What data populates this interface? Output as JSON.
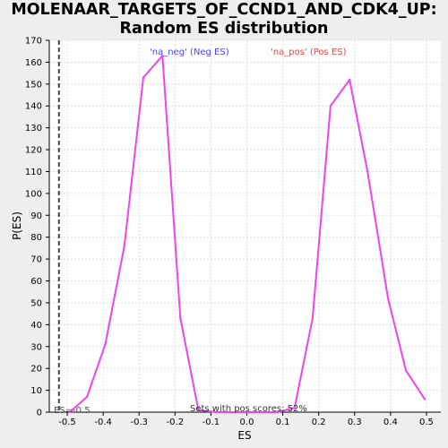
{
  "title_line1": "MOLENAAR_TARGETS_OF_CCND1_AND_CDK4_UP:",
  "title_line2": "Random ES distribution",
  "chart_data": {
    "type": "line",
    "xlabel": "ES",
    "ylabel": "P(ES)",
    "xlim": [
      -0.55,
      0.54
    ],
    "ylim": [
      0,
      170
    ],
    "xticks": [
      "-0.5",
      "-0.4",
      "-0.3",
      "-0.2",
      "-0.1",
      "0.0",
      "0.1",
      "0.2",
      "0.3",
      "0.4",
      "0.5"
    ],
    "yticks": [
      "0",
      "10",
      "20",
      "30",
      "40",
      "50",
      "60",
      "70",
      "80",
      "90",
      "100",
      "110",
      "120",
      "130",
      "140",
      "150",
      "160",
      "170"
    ],
    "grid": true,
    "series": [
      {
        "color": "#ee44ee",
        "x": [
          -0.493,
          -0.445,
          -0.394,
          -0.341,
          -0.288,
          -0.235,
          -0.185,
          -0.135,
          -0.085,
          0.0,
          0.085,
          0.133,
          0.183,
          0.233,
          0.286,
          0.336,
          0.393,
          0.443,
          0.495
        ],
        "y": [
          0,
          7,
          31,
          76,
          153,
          163,
          43,
          1,
          0,
          0,
          0,
          2,
          43,
          140,
          152,
          110,
          52,
          19,
          6
        ]
      }
    ],
    "dashed_vline": {
      "x": -0.5231,
      "color": "#444444"
    },
    "annotations": {
      "neg": {
        "text": "'na_neg' (Neg ES)",
        "color": "#4444ee"
      },
      "pos": {
        "text": "'na_pos' (Pos ES)",
        "color": "#ee4444"
      },
      "es": {
        "text": "ES=-0.5"
      },
      "sets": {
        "text": "Sets with pos scores: 52%"
      }
    }
  }
}
